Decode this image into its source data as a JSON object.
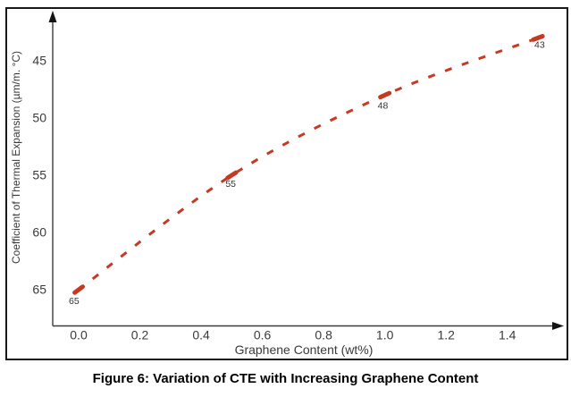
{
  "figure": {
    "caption": "Figure 6: Variation of CTE with Increasing Graphene Content"
  },
  "chart_data": {
    "type": "line",
    "title": "",
    "xlabel": "Graphene Content (wt%)",
    "ylabel": "Coefficient of Thermal Expansion (µm/m. °C)",
    "x": [
      0.0,
      0.5,
      1.0,
      1.5
    ],
    "series": [
      {
        "name": "CTE",
        "values": [
          65,
          55,
          48,
          43
        ],
        "point_labels": [
          "65",
          "55",
          "48",
          "43"
        ]
      }
    ],
    "xlim": [
      0,
      1.5
    ],
    "ylim": [
      45,
      65
    ],
    "y_axis_inverted": true,
    "x_ticks": [
      0.0,
      0.2,
      0.4,
      0.6,
      0.8,
      1.0,
      1.2,
      1.4
    ],
    "x_tick_labels": [
      "0.0",
      "0.2",
      "0.4",
      "0.6",
      "0.8",
      "1.0",
      "1.2",
      "1.4"
    ],
    "y_ticks": [
      45,
      50,
      55,
      60,
      65
    ],
    "y_tick_labels": [
      "45",
      "50",
      "55",
      "60",
      "65"
    ],
    "grid": false,
    "legend": "none",
    "line_style": "dashed",
    "marker": "dash",
    "colors": {
      "line": "#c43a22",
      "tick_text": "#3a3a3a",
      "axis": "#3c3c3c",
      "arrow": "#141414",
      "point_label_text": "#333333",
      "frame_border": "#181818"
    }
  }
}
